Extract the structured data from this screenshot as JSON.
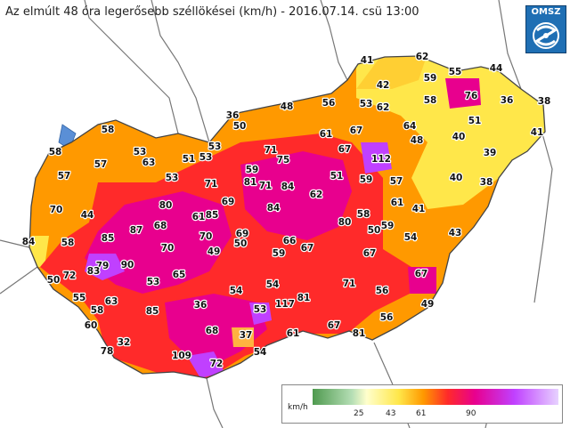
{
  "title": "Az elmúlt 48 óra legerősebb széllökései (km/h) - 2016.07.14. csü 13:00",
  "logo": {
    "text": "OMSZ",
    "icon": "cyclone-icon"
  },
  "legend": {
    "unit": "km/h",
    "ticks": [
      "25",
      "43",
      "61",
      "90"
    ]
  },
  "colors": {
    "green": "#7fbf7f",
    "yellow": "#ffe74a",
    "orange": "#ff9900",
    "red": "#ff2a2a",
    "magenta": "#e8008e",
    "violet": "#c040ff"
  },
  "stations": [
    "41",
    "62",
    "55",
    "44",
    "42",
    "59",
    "76",
    "36",
    "38",
    "48",
    "56",
    "53",
    "62",
    "58",
    "51",
    "41",
    "36",
    "50",
    "58",
    "61",
    "67",
    "64",
    "48",
    "40",
    "39",
    "58",
    "53",
    "53",
    "71",
    "75",
    "67",
    "112",
    "57",
    "63",
    "51",
    "53",
    "59",
    "81",
    "71",
    "84",
    "51",
    "59",
    "57",
    "40",
    "38",
    "57",
    "53",
    "71",
    "62",
    "69",
    "61",
    "85",
    "84",
    "80",
    "58",
    "61",
    "41",
    "70",
    "44",
    "80",
    "69",
    "70",
    "68",
    "87",
    "50",
    "43",
    "84",
    "58",
    "85",
    "70",
    "66",
    "67",
    "50",
    "59",
    "54",
    "49",
    "50",
    "59",
    "79",
    "90",
    "83",
    "72",
    "53",
    "65",
    "71",
    "67",
    "67",
    "56",
    "54",
    "55",
    "63",
    "54",
    "81",
    "58",
    "85",
    "36",
    "117",
    "53",
    "49",
    "56",
    "60",
    "68",
    "61",
    "67",
    "81",
    "32",
    "37",
    "78",
    "109",
    "72",
    "54"
  ]
}
